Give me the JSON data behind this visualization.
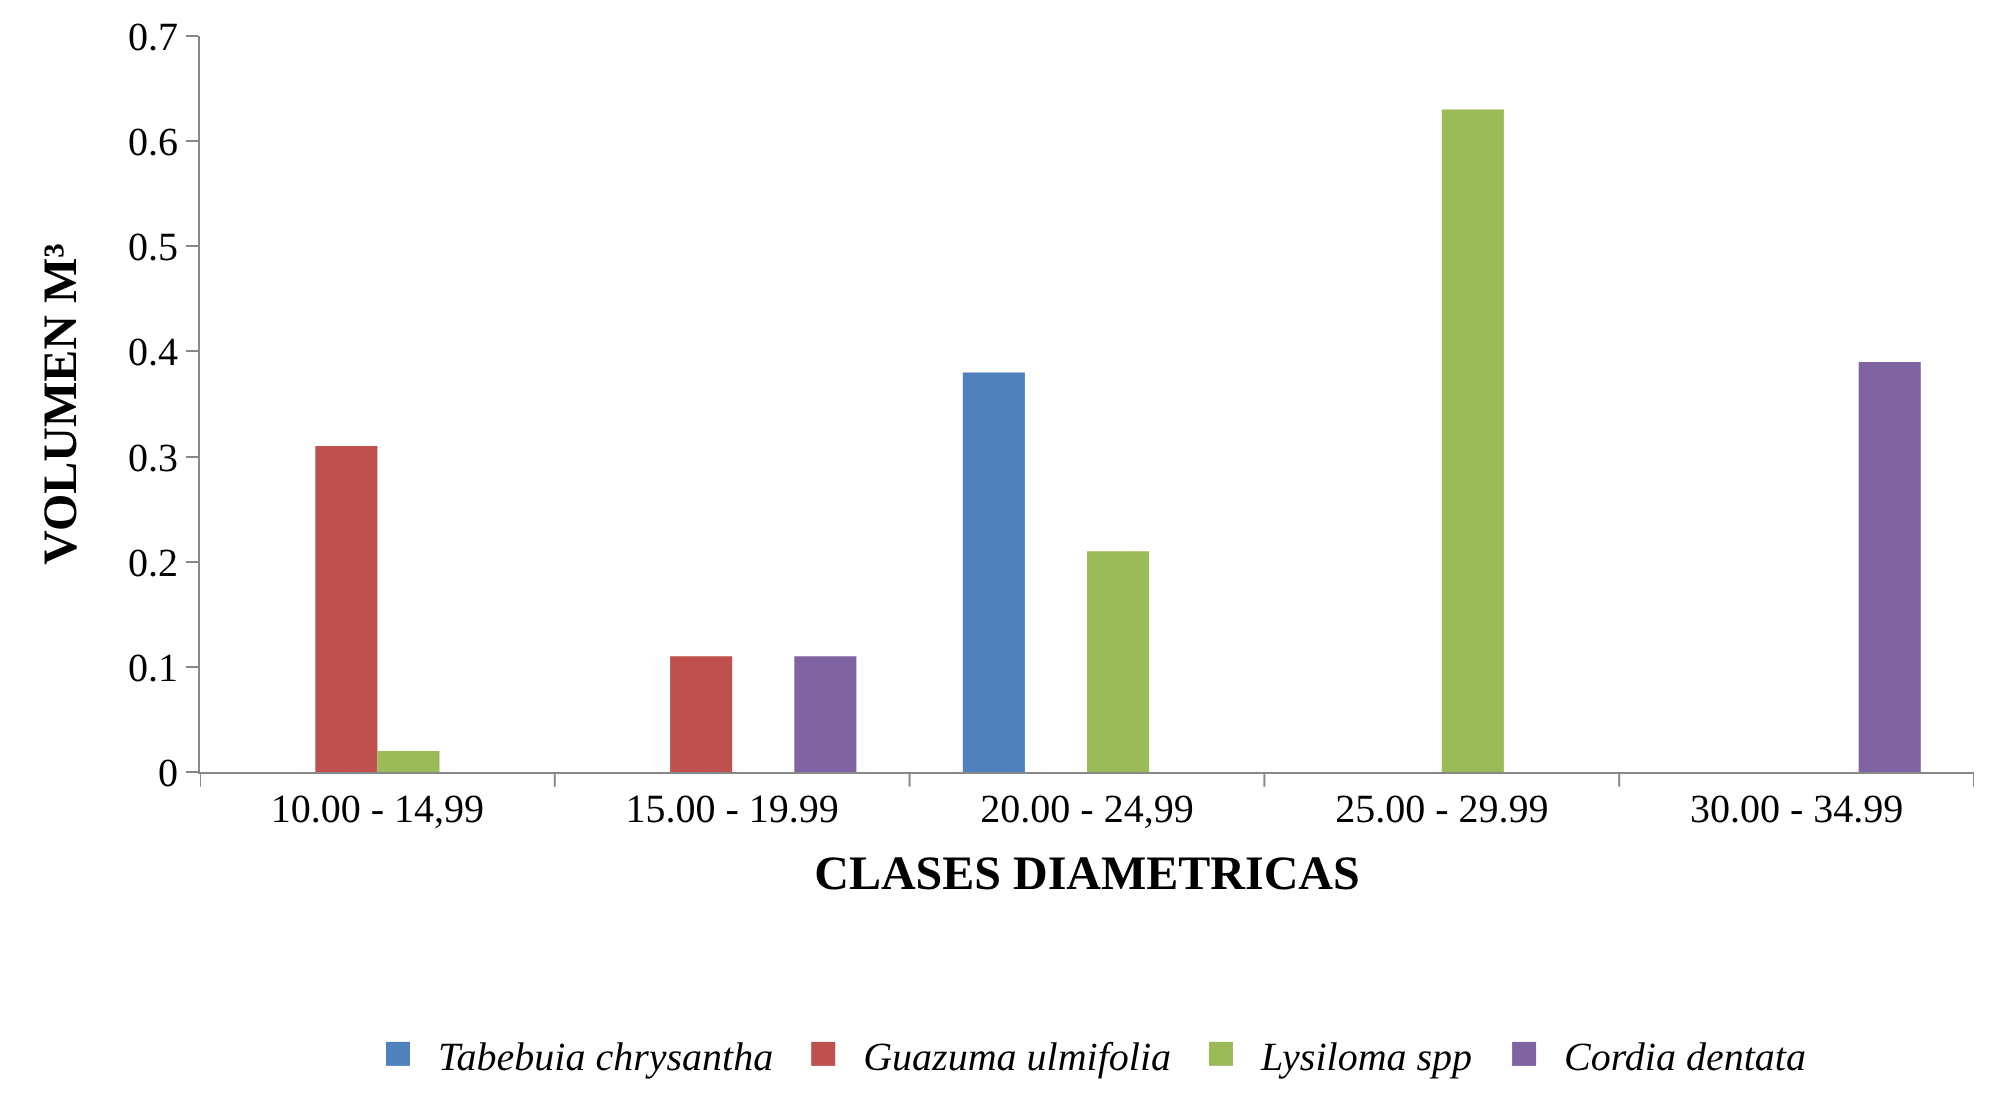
{
  "chart_data": {
    "type": "bar",
    "xlabel": "CLASES DIAMETRICAS",
    "ylabel": "VOLUMEN M³",
    "categories": [
      "10.00 - 14,99",
      "15.00 - 19.99",
      "20.00 - 24,99",
      "25.00 - 29.99",
      "30.00 - 34.99"
    ],
    "series": [
      {
        "name": "Tabebuia chrysantha",
        "color": "#4f81bd",
        "values": [
          0,
          0,
          0.38,
          0,
          0
        ]
      },
      {
        "name": "Guazuma ulmifolia",
        "color": "#c0504d",
        "values": [
          0.31,
          0.11,
          0,
          0,
          0
        ]
      },
      {
        "name": "Lysiloma spp",
        "color": "#9bbb59",
        "values": [
          0.02,
          0,
          0.21,
          0.63,
          0
        ]
      },
      {
        "name": "Cordia dentata",
        "color": "#8064a2",
        "values": [
          0,
          0.11,
          0,
          0,
          0.39
        ]
      }
    ],
    "ylim": [
      0,
      0.7
    ],
    "yticks": [
      0,
      0.1,
      0.2,
      0.3,
      0.4,
      0.5,
      0.6,
      0.7
    ],
    "grid": false,
    "legend": "bottom"
  }
}
